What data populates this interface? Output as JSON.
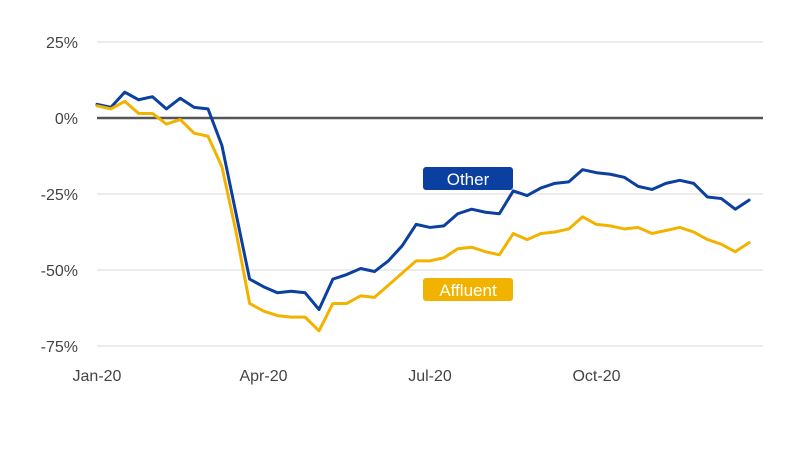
{
  "chart_data": {
    "type": "line",
    "title": "",
    "xlabel": "",
    "ylabel": "",
    "ylim": [
      -75,
      25
    ],
    "yticks": [
      25,
      0,
      -25,
      -50,
      -75
    ],
    "ytick_labels": [
      "25%",
      "0%",
      "-25%",
      "-50%",
      "-75%"
    ],
    "xlim": [
      0,
      48
    ],
    "xticks": [
      0,
      12,
      24,
      36
    ],
    "xtick_labels": [
      "Jan-20",
      "Apr-20",
      "Jul-20",
      "Oct-20"
    ],
    "grid": true,
    "series": [
      {
        "name": "Other",
        "color": "#0b3fa0",
        "label_color": "#0b3fa0",
        "values": [
          4.5,
          3.5,
          8.5,
          6,
          7,
          3,
          6.5,
          3.5,
          3,
          -9,
          -31,
          -53,
          -55.5,
          -57.5,
          -57,
          -57.5,
          -63,
          -53,
          -51.5,
          -49.5,
          -50.5,
          -47,
          -42,
          -35,
          -36,
          -35.5,
          -31.5,
          -30,
          -31,
          -31.5,
          -24,
          -25.5,
          -23,
          -21.5,
          -21,
          -17,
          -18,
          -18.5,
          -19.5,
          -22.5,
          -23.5,
          -21.5,
          -20.5,
          -21.5,
          -26,
          -26.5,
          -30,
          -27
        ]
      },
      {
        "name": "Affluent",
        "color": "#f2b300",
        "label_color": "#f2b300",
        "values": [
          4,
          3,
          5.5,
          1.5,
          1.5,
          -2,
          -0.5,
          -5,
          -6,
          -16,
          -37,
          -61,
          -63.5,
          -65,
          -65.5,
          -65.5,
          -70,
          -61,
          -61,
          -58.5,
          -59,
          -55,
          -51,
          -47,
          -47,
          -46,
          -43,
          -42.5,
          -44,
          -45,
          -38,
          -40,
          -38,
          -37.5,
          -36.5,
          -32.5,
          -35,
          -35.5,
          -36.5,
          -36,
          -38,
          -37,
          -36,
          -37.5,
          -40,
          -41.5,
          -44,
          -41
        ]
      }
    ]
  }
}
